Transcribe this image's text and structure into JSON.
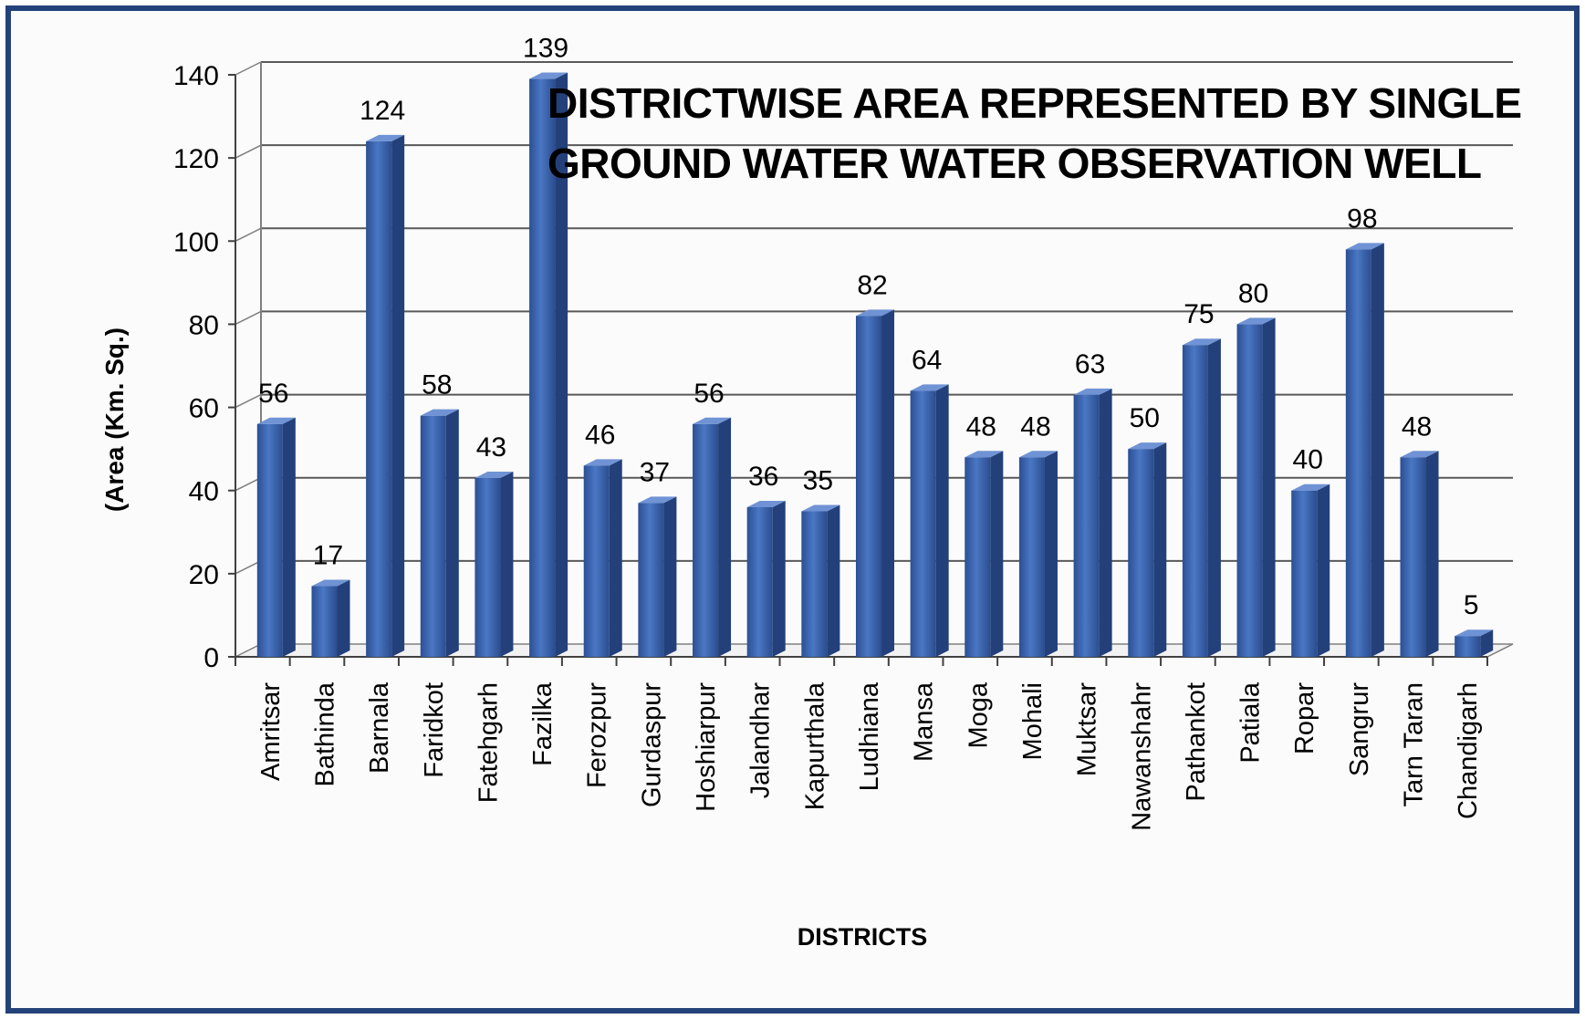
{
  "chart_data": {
    "type": "bar",
    "title_lines": [
      "DISTRICTWISE AREA REPRESENTED BY SINGLE",
      "GROUND WATER WATER OBSERVATION WELL"
    ],
    "xlabel": "DISTRICTS",
    "ylabel": "(Area (Km. Sq.)",
    "ylim": [
      0,
      140
    ],
    "yticks": [
      0,
      20,
      40,
      60,
      80,
      100,
      120,
      140
    ],
    "grid": true,
    "legend": "none",
    "bar_color": "#3b63ad",
    "categories": [
      "Amritsar",
      "Bathinda",
      "Barnala",
      "Faridkot",
      "Fatehgarh",
      "Fazilka",
      "Ferozpur",
      "Gurdaspur",
      "Hoshiarpur",
      "Jalandhar",
      "Kapurthala",
      "Ludhiana",
      "Mansa",
      "Moga",
      "Mohali",
      "Muktsar",
      "Nawanshahr",
      "Pathankot",
      "Patiala",
      "Ropar",
      "Sangrur",
      "Tarn Taran",
      "Chandigarh"
    ],
    "values": [
      56,
      17,
      124,
      58,
      43,
      139,
      46,
      37,
      56,
      36,
      35,
      82,
      64,
      48,
      48,
      63,
      50,
      75,
      80,
      40,
      98,
      48,
      5
    ]
  }
}
